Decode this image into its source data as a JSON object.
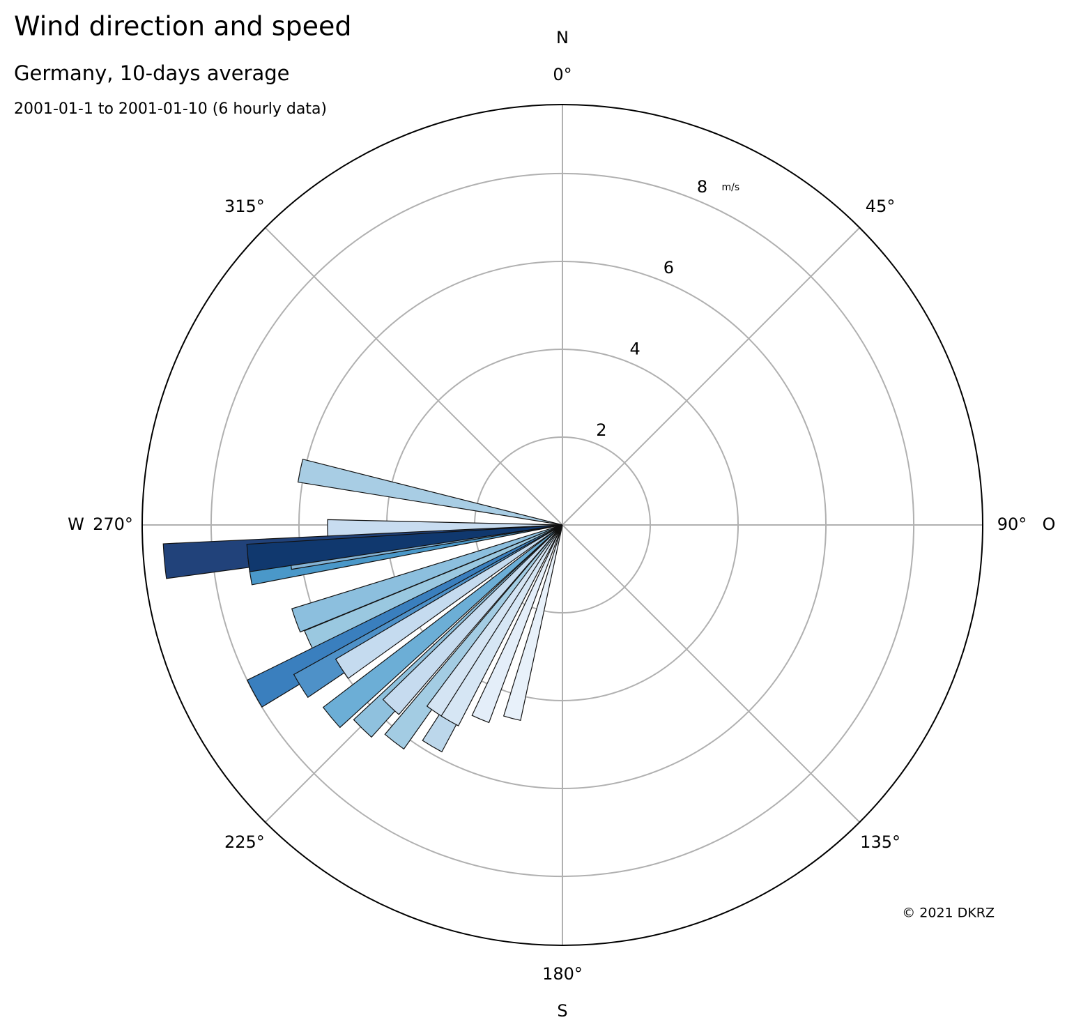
{
  "chart_data": {
    "type": "polar-bar",
    "title": "Wind direction and speed",
    "subtitle": "Germany, 10-days average",
    "period": "2001-01-1 to 2001-01-10 (6 hourly data)",
    "copyright": "© 2021 DKRZ",
    "radial_unit": "m/s",
    "x": [
      281.7,
      268.8,
      264.8,
      261.6,
      263.2,
      264.0,
      250.3,
      245.2,
      241.3,
      238.4,
      236.9,
      230.2,
      224.5,
      223.3,
      217.8,
      210.5,
      214.3,
      209.9,
      202.9,
      194.6
    ],
    "values": [
      6.1,
      5.35,
      9.1,
      7.2,
      6.25,
      7.2,
      6.45,
      6.35,
      8.0,
      7.0,
      6.0,
      6.85,
      6.5,
      5.7,
      6.25,
      5.85,
      5.15,
      5.15,
      4.8,
      4.55
    ],
    "colors": [
      "#a8cde4",
      "#c8dcf0",
      "#21427a",
      "#4a98c9",
      "#85b4d6",
      "#10386e",
      "#8cbfde",
      "#9ac8e0",
      "#3a7fbe",
      "#4e91c8",
      "#c5dbef",
      "#6caed6",
      "#8fc1de",
      "#c6dbef",
      "#a3cce3",
      "#bcd7eb",
      "#d4e4f3",
      "#d6e6f4",
      "#e4eef9",
      "#e8f1fa"
    ],
    "ylim": [
      0,
      9.57
    ],
    "yticks": [
      2,
      4,
      6,
      8
    ],
    "xticks": [
      {
        "value": 0,
        "label": "0°"
      },
      {
        "value": 45,
        "label": "45°"
      },
      {
        "value": 90,
        "label": "90°"
      },
      {
        "value": 135,
        "label": "135°"
      },
      {
        "value": 180,
        "label": "180°"
      },
      {
        "value": 225,
        "label": "225°"
      },
      {
        "value": 270,
        "label": "270°"
      },
      {
        "value": 315,
        "label": "315°"
      }
    ],
    "compass": [
      {
        "value": 0,
        "label": "N"
      },
      {
        "value": 90,
        "label": "O"
      },
      {
        "value": 180,
        "label": "S"
      },
      {
        "value": 270,
        "label": "W"
      }
    ],
    "grid": true
  }
}
